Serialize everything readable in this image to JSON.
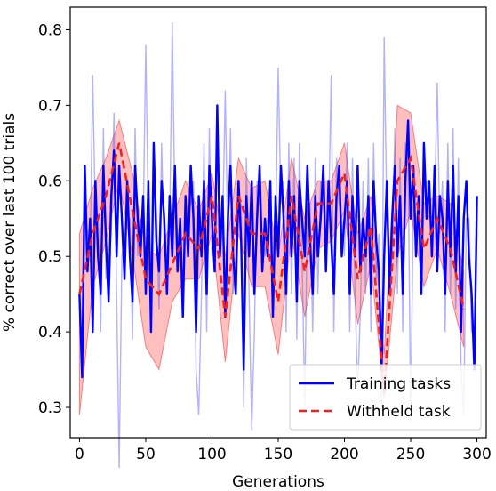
{
  "chart_data": {
    "type": "line",
    "title": "",
    "xlabel": "Generations",
    "ylabel": "% correct over last 100 trials",
    "xlim": [
      -7,
      307
    ],
    "ylim": [
      0.26,
      0.83
    ],
    "xticks": [
      0,
      50,
      100,
      150,
      200,
      250,
      300
    ],
    "yticks": [
      0.3,
      0.4,
      0.5,
      0.6,
      0.7,
      0.8
    ],
    "grid": false,
    "legend": {
      "position": "bottom-right",
      "entries": [
        "Training tasks",
        "Withheld task"
      ]
    },
    "series": [
      {
        "name": "Training tasks",
        "color": "#0000ff",
        "style": "solid",
        "x": [
          0,
          2,
          4,
          6,
          8,
          10,
          12,
          14,
          16,
          18,
          20,
          22,
          24,
          26,
          28,
          30,
          32,
          34,
          36,
          38,
          40,
          42,
          44,
          46,
          48,
          50,
          52,
          54,
          56,
          58,
          60,
          62,
          64,
          66,
          68,
          70,
          72,
          74,
          76,
          78,
          80,
          82,
          84,
          86,
          88,
          90,
          92,
          94,
          96,
          98,
          100,
          102,
          104,
          106,
          108,
          110,
          112,
          114,
          116,
          118,
          120,
          122,
          124,
          126,
          128,
          130,
          132,
          134,
          136,
          138,
          140,
          142,
          144,
          146,
          148,
          150,
          152,
          154,
          156,
          158,
          160,
          162,
          164,
          166,
          168,
          170,
          172,
          174,
          176,
          178,
          180,
          182,
          184,
          186,
          188,
          190,
          192,
          194,
          196,
          198,
          200,
          202,
          204,
          206,
          208,
          210,
          212,
          214,
          216,
          218,
          220,
          222,
          224,
          226,
          228,
          230,
          232,
          234,
          236,
          238,
          240,
          242,
          244,
          246,
          248,
          250,
          252,
          254,
          256,
          258,
          260,
          262,
          264,
          266,
          268,
          270,
          272,
          274,
          276,
          278,
          280,
          282,
          284,
          286,
          288,
          290,
          292,
          294,
          296,
          298,
          300
        ],
        "y": [
          0.45,
          0.34,
          0.62,
          0.48,
          0.55,
          0.4,
          0.6,
          0.5,
          0.45,
          0.62,
          0.52,
          0.44,
          0.58,
          0.64,
          0.5,
          0.62,
          0.55,
          0.47,
          0.6,
          0.5,
          0.44,
          0.62,
          0.55,
          0.5,
          0.58,
          0.45,
          0.6,
          0.4,
          0.65,
          0.52,
          0.48,
          0.6,
          0.55,
          0.45,
          0.58,
          0.5,
          0.62,
          0.48,
          0.55,
          0.42,
          0.58,
          0.5,
          0.62,
          0.55,
          0.4,
          0.58,
          0.5,
          0.6,
          0.45,
          0.62,
          0.55,
          0.48,
          0.7,
          0.5,
          0.58,
          0.42,
          0.55,
          0.62,
          0.5,
          0.45,
          0.6,
          0.52,
          0.35,
          0.58,
          0.5,
          0.6,
          0.45,
          0.55,
          0.62,
          0.48,
          0.55,
          0.5,
          0.6,
          0.42,
          0.58,
          0.5,
          0.62,
          0.55,
          0.45,
          0.6,
          0.5,
          0.58,
          0.44,
          0.6,
          0.55,
          0.5,
          0.62,
          0.52,
          0.45,
          0.58,
          0.5,
          0.55,
          0.62,
          0.48,
          0.6,
          0.52,
          0.45,
          0.58,
          0.62,
          0.5,
          0.55,
          0.6,
          0.45,
          0.58,
          0.5,
          0.62,
          0.48,
          0.55,
          0.5,
          0.58,
          0.45,
          0.6,
          0.52,
          0.48,
          0.35,
          0.5,
          0.6,
          0.45,
          0.55,
          0.62,
          0.5,
          0.58,
          0.45,
          0.6,
          0.68,
          0.55,
          0.62,
          0.5,
          0.58,
          0.45,
          0.65,
          0.55,
          0.6,
          0.5,
          0.62,
          0.48,
          0.58,
          0.55,
          0.45,
          0.6,
          0.5,
          0.62,
          0.48,
          0.58,
          0.4,
          0.55,
          0.6,
          0.5,
          0.45,
          0.35,
          0.58
        ],
        "y_raw_peaks": [
          0.74,
          0.22,
          0.78,
          0.81,
          0.29,
          0.72,
          0.27,
          0.75,
          0.3,
          0.74,
          0.32,
          0.79,
          0.28,
          0.73,
          0.29
        ]
      },
      {
        "name": "Withheld task",
        "color": "#ee2222",
        "style": "dashed",
        "x": [
          0,
          10,
          20,
          30,
          40,
          50,
          60,
          70,
          80,
          90,
          100,
          110,
          120,
          130,
          140,
          150,
          160,
          170,
          180,
          190,
          200,
          210,
          220,
          230,
          240,
          250,
          260,
          270,
          280,
          290
        ],
        "y": [
          0.45,
          0.53,
          0.58,
          0.65,
          0.56,
          0.47,
          0.45,
          0.49,
          0.53,
          0.51,
          0.58,
          0.42,
          0.58,
          0.53,
          0.53,
          0.44,
          0.58,
          0.48,
          0.57,
          0.57,
          0.61,
          0.47,
          0.54,
          0.32,
          0.6,
          0.63,
          0.51,
          0.55,
          0.51,
          0.43
        ],
        "upper": [
          0.53,
          0.59,
          0.63,
          0.68,
          0.61,
          0.51,
          0.5,
          0.55,
          0.6,
          0.56,
          0.61,
          0.5,
          0.63,
          0.59,
          0.6,
          0.5,
          0.63,
          0.55,
          0.6,
          0.6,
          0.65,
          0.53,
          0.58,
          0.37,
          0.7,
          0.69,
          0.57,
          0.58,
          0.57,
          0.48
        ],
        "lower": [
          0.29,
          0.46,
          0.52,
          0.6,
          0.5,
          0.38,
          0.35,
          0.44,
          0.47,
          0.47,
          0.53,
          0.36,
          0.53,
          0.46,
          0.46,
          0.37,
          0.53,
          0.42,
          0.51,
          0.52,
          0.56,
          0.41,
          0.49,
          0.31,
          0.5,
          0.56,
          0.46,
          0.51,
          0.45,
          0.38
        ]
      }
    ]
  }
}
